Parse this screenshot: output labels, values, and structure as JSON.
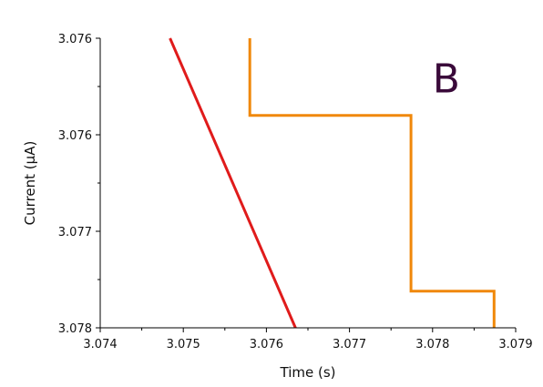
{
  "chart_data": {
    "type": "line",
    "xlabel": "Time (s)",
    "ylabel": "Current (μA)",
    "xlim": [
      3.074,
      3.079
    ],
    "ylim": [
      3.076,
      3.0775
    ],
    "y_inverted": true,
    "grid": false,
    "x_tick_labels": [
      "3.074",
      "3.075",
      "3.076",
      "3.077",
      "3.078",
      "3.079"
    ],
    "x_tick_values": [
      3.074,
      3.075,
      3.076,
      3.077,
      3.078,
      3.079
    ],
    "y_tick_labels": [
      "3.076",
      "3.076",
      "3.077",
      "3.078"
    ],
    "y_tick_values": [
      3.076,
      3.0765,
      3.077,
      3.0775
    ],
    "series": [
      {
        "color": "#e01b1b",
        "x": [
          3.07484,
          3.07635
        ],
        "y": [
          3.076,
          3.0775
        ]
      },
      {
        "color": "#f0880a",
        "step": true,
        "x": [
          3.0758,
          3.0758,
          3.07774,
          3.07774,
          3.07874,
          3.07874
        ],
        "y": [
          3.076,
          3.0764,
          3.0764,
          3.07731,
          3.07731,
          3.0775
        ]
      }
    ],
    "annotations": [
      {
        "text": "B",
        "x": 3.078,
        "y": 3.07628,
        "color": "#3a0a3a"
      }
    ]
  }
}
